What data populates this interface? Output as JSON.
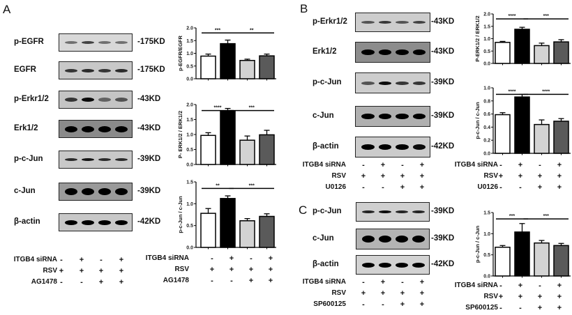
{
  "panels": {
    "A": {
      "letter": "A",
      "blots": [
        {
          "label": "p-EGFR",
          "kd": "-175KD",
          "intensity": [
            0.45,
            0.7,
            0.45,
            0.45
          ],
          "thickness": 4,
          "bg": "#d8d8d8"
        },
        {
          "label": "EGFR",
          "kd": "-175KD",
          "intensity": [
            0.75,
            0.8,
            0.75,
            0.8
          ],
          "thickness": 5,
          "bg": "#c8c8c8"
        },
        {
          "label": "p-Erkr1/2",
          "kd": "-43KD",
          "intensity": [
            0.75,
            0.95,
            0.5,
            0.6
          ],
          "thickness": 6,
          "bg": "#c4c4c4"
        },
        {
          "label": "Erk1/2",
          "kd": "-43KD",
          "intensity": [
            1.0,
            1.0,
            1.0,
            1.0
          ],
          "thickness": 9,
          "bg": "#8a8a8a"
        },
        {
          "label": "p-c-Jun",
          "kd": "-39KD",
          "intensity": [
            0.8,
            0.9,
            0.8,
            0.8
          ],
          "thickness": 4,
          "bg": "#c8c8c8"
        },
        {
          "label": "c-Jun",
          "kd": "-39KD",
          "intensity": [
            1.0,
            1.0,
            1.0,
            1.0
          ],
          "thickness": 10,
          "bg": "#9a9a9a"
        },
        {
          "label": "β-actin",
          "kd": "-42KD",
          "intensity": [
            1.0,
            1.0,
            1.0,
            1.0
          ],
          "thickness": 7,
          "bg": "#c8c8c8"
        }
      ],
      "conditions": [
        {
          "label": "ITGB4 siRNA",
          "signs": [
            "-",
            "+",
            "-",
            "+"
          ]
        },
        {
          "label": "RSV",
          "signs": [
            "+",
            "+",
            "+",
            "+"
          ]
        },
        {
          "label": "AG1478",
          "signs": [
            "-",
            "-",
            "+",
            "+"
          ]
        }
      ],
      "chart_conditions": [
        {
          "label": "ITGB4 siRNA",
          "signs": [
            "-",
            "+",
            "-",
            "+"
          ]
        },
        {
          "label": "RSV",
          "signs": [
            "+",
            "+",
            "+",
            "+"
          ]
        },
        {
          "label": "AG1478",
          "signs": [
            "-",
            "-",
            "+",
            "+"
          ]
        }
      ]
    },
    "B": {
      "letter": "B",
      "blots": [
        {
          "label": "p-Erkr1/2",
          "kd": "-43KD",
          "intensity": [
            0.6,
            0.75,
            0.6,
            0.7
          ],
          "thickness": 4,
          "bg": "#cdcdcd"
        },
        {
          "label": "Erk1/2",
          "kd": "-43KD",
          "intensity": [
            1.0,
            1.0,
            1.0,
            1.0
          ],
          "thickness": 8,
          "bg": "#8c8c8c"
        },
        {
          "label": "p-c-Jun",
          "kd": "-39KD",
          "intensity": [
            0.6,
            0.95,
            0.75,
            0.75
          ],
          "thickness": 5,
          "bg": "#cdcdcd"
        },
        {
          "label": "c-Jun",
          "kd": "-39KD",
          "intensity": [
            1.0,
            1.0,
            1.0,
            1.0
          ],
          "thickness": 8,
          "bg": "#b0b0b0"
        },
        {
          "label": "β-actin",
          "kd": "-42KD",
          "intensity": [
            1.0,
            1.0,
            1.0,
            0.95
          ],
          "thickness": 8,
          "bg": "#cbcbcb"
        }
      ],
      "conditions": [
        {
          "label": "ITGB4 siRNA",
          "signs": [
            "-",
            "+",
            "-",
            "+"
          ]
        },
        {
          "label": "RSV",
          "signs": [
            "+",
            "+",
            "+",
            "+"
          ]
        },
        {
          "label": "U0126",
          "signs": [
            "-",
            "-",
            "+",
            "+"
          ]
        }
      ],
      "chart_conditions": [
        {
          "label": "ITGB4 siRNA",
          "signs": [
            "-",
            "+",
            "-",
            "+"
          ]
        },
        {
          "label": "RSV",
          "signs": [
            "+",
            "+",
            "+",
            "+"
          ]
        },
        {
          "label": "U0126",
          "signs": [
            "-",
            "-",
            "+",
            "+"
          ]
        }
      ]
    },
    "C": {
      "letter": "C",
      "blots": [
        {
          "label": "p-c-Jun",
          "kd": "-39KD",
          "intensity": [
            0.85,
            0.95,
            0.85,
            0.85
          ],
          "thickness": 4,
          "bg": "#cfcfcf"
        },
        {
          "label": "c-Jun",
          "kd": "-39KD",
          "intensity": [
            1.0,
            1.0,
            1.0,
            1.0
          ],
          "thickness": 10,
          "bg": "#b4b4b4"
        },
        {
          "label": "β-actin",
          "kd": "-42KD",
          "intensity": [
            1.0,
            1.0,
            1.0,
            1.0
          ],
          "thickness": 7,
          "bg": "#d2d2d2"
        }
      ],
      "conditions": [
        {
          "label": "ITGB4 siRNA",
          "signs": [
            "-",
            "+",
            "-",
            "+"
          ]
        },
        {
          "label": "RSV",
          "signs": [
            "+",
            "+",
            "+",
            "+"
          ]
        },
        {
          "label": "SP600125",
          "signs": [
            "-",
            "-",
            "+",
            "+"
          ]
        }
      ],
      "chart_conditions": [
        {
          "label": "ITGB4 siRNA",
          "signs": [
            "-",
            "+",
            "-",
            "+"
          ]
        },
        {
          "label": "RSV",
          "signs": [
            "+",
            "+",
            "+",
            "+"
          ]
        },
        {
          "label": "SP600125",
          "signs": [
            "-",
            "-",
            "+",
            "+"
          ]
        }
      ]
    }
  },
  "bar_colors": [
    "#ffffff",
    "#000000",
    "#d3d3d3",
    "#5a5a5a"
  ],
  "chart_data": [
    {
      "id": "A1",
      "type": "bar",
      "title": "",
      "categories": [
        "siNC+RSV",
        "siITGB4+RSV",
        "siNC+RSV+AG1478",
        "siITGB4+RSV+AG1478"
      ],
      "values": [
        0.89,
        1.38,
        0.72,
        0.9
      ],
      "errors": [
        0.08,
        0.14,
        0.05,
        0.07
      ],
      "ylabel": "p-EGFR/EGFR",
      "xlabel": "",
      "ylim": [
        0,
        2.0
      ],
      "yticks": [
        "0.0",
        "0.5",
        "1.0",
        "1.5",
        "2.0"
      ],
      "significance": [
        {
          "from": 0,
          "to": 1,
          "label": "***"
        },
        {
          "from": 1,
          "to": 3,
          "label": "**"
        }
      ]
    },
    {
      "id": "A2",
      "type": "bar",
      "title": "",
      "categories": [
        "siNC+RSV",
        "siITGB4+RSV",
        "siNC+RSV+AG1478",
        "siITGB4+RSV+AG1478"
      ],
      "values": [
        0.97,
        1.79,
        0.81,
        0.99
      ],
      "errors": [
        0.09,
        0.08,
        0.14,
        0.15
      ],
      "ylabel": "P- ERK1/2 / ERK1/2",
      "xlabel": "",
      "ylim": [
        0,
        2.0
      ],
      "yticks": [
        "0.0",
        "0.5",
        "1.0",
        "1.5",
        "2.0"
      ],
      "significance": [
        {
          "from": 0,
          "to": 1,
          "label": "****"
        },
        {
          "from": 1,
          "to": 3,
          "label": "***"
        }
      ]
    },
    {
      "id": "A3",
      "type": "bar",
      "title": "",
      "categories": [
        "siNC+RSV",
        "siITGB4+RSV",
        "siNC+RSV+AG1478",
        "siITGB4+RSV+AG1478"
      ],
      "values": [
        0.78,
        1.12,
        0.61,
        0.71
      ],
      "errors": [
        0.11,
        0.06,
        0.05,
        0.06
      ],
      "ylabel": "p-c-Jun / c-Jun",
      "xlabel": "",
      "ylim": [
        0,
        1.5
      ],
      "yticks": [
        "0.0",
        "0.5",
        "1.0",
        "1.5"
      ],
      "significance": [
        {
          "from": 0,
          "to": 1,
          "label": "**"
        },
        {
          "from": 1,
          "to": 3,
          "label": "***"
        }
      ]
    },
    {
      "id": "B1",
      "type": "bar",
      "title": "",
      "categories": [
        "siNC+RSV",
        "siITGB4+RSV",
        "siNC+RSV+U0126",
        "siITGB4+RSV+U0126"
      ],
      "values": [
        0.85,
        1.38,
        0.72,
        0.87
      ],
      "errors": [
        0.04,
        0.08,
        0.1,
        0.09
      ],
      "ylabel": "P-ERK1/2 / ERK1/2",
      "xlabel": "",
      "ylim": [
        0,
        2.0
      ],
      "yticks": [
        "0.0",
        "0.5",
        "1.0",
        "1.5",
        "2.0"
      ],
      "significance": [
        {
          "from": 0,
          "to": 1,
          "label": "****"
        },
        {
          "from": 1,
          "to": 3,
          "label": "***"
        }
      ]
    },
    {
      "id": "B2",
      "type": "bar",
      "title": "",
      "categories": [
        "siNC+RSV",
        "siITGB4+RSV",
        "siNC+RSV+U0126",
        "siITGB4+RSV+U0126"
      ],
      "values": [
        0.59,
        0.86,
        0.44,
        0.49
      ],
      "errors": [
        0.03,
        0.04,
        0.07,
        0.04
      ],
      "ylabel": "p-c-Jun / c-Jun",
      "xlabel": "",
      "ylim": [
        0,
        1.0
      ],
      "yticks": [
        "0.0",
        "0.2",
        "0.4",
        "0.6",
        "0.8",
        "1.0"
      ],
      "significance": [
        {
          "from": 0,
          "to": 1,
          "label": "****"
        },
        {
          "from": 1,
          "to": 3,
          "label": "****"
        }
      ]
    },
    {
      "id": "C1",
      "type": "bar",
      "title": "",
      "categories": [
        "siNC+RSV",
        "siITGB4+RSV",
        "siNC+RSV+SP600125",
        "siITGB4+RSV+SP600125"
      ],
      "values": [
        0.68,
        1.04,
        0.78,
        0.72
      ],
      "errors": [
        0.04,
        0.2,
        0.06,
        0.05
      ],
      "ylabel": "p-c-Jun / c-Jun",
      "xlabel": "",
      "ylim": [
        0,
        1.5
      ],
      "yticks": [
        "0.0",
        "0.5",
        "1.0",
        "1.5"
      ],
      "significance": [
        {
          "from": 0,
          "to": 1,
          "label": "***"
        },
        {
          "from": 1,
          "to": 3,
          "label": "***"
        }
      ]
    }
  ]
}
